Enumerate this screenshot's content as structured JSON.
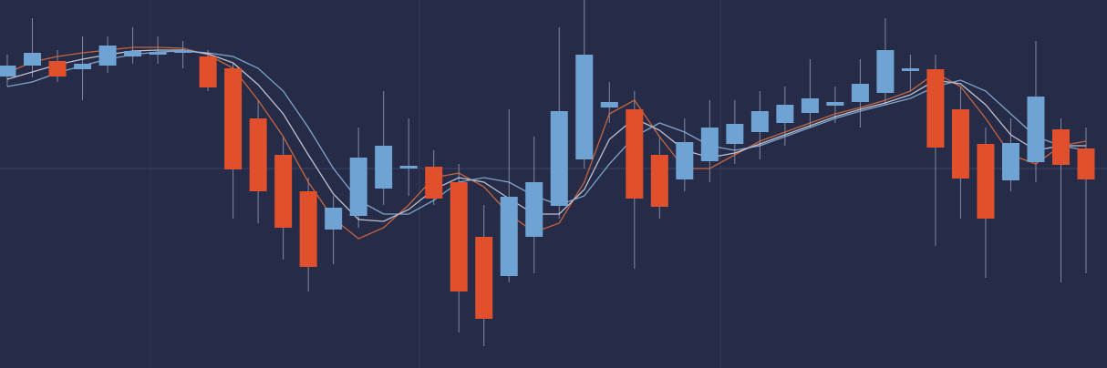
{
  "chart_data": {
    "type": "candlestick",
    "categories": [
      null,
      null,
      null,
      null,
      null,
      null,
      null,
      null,
      null,
      null,
      null,
      null,
      null,
      null,
      null,
      null,
      null,
      null,
      null,
      null,
      null,
      null,
      null,
      null,
      null,
      null,
      null,
      null,
      null,
      null,
      null,
      null,
      null,
      null,
      null,
      null,
      null,
      null,
      null,
      null,
      null,
      null,
      null,
      null
    ],
    "open": [
      320,
      332,
      337,
      328,
      332,
      342,
      344,
      346,
      342,
      329,
      274,
      234,
      194,
      152,
      167,
      197,
      219,
      221,
      204,
      144,
      101,
      144,
      178,
      229,
      286,
      284,
      234,
      207,
      227,
      246,
      259,
      269,
      280,
      288,
      292,
      302,
      326,
      328,
      284,
      246,
      206,
      226,
      262,
      241
    ],
    "high": [
      344,
      384,
      349,
      364,
      364,
      374,
      364,
      359,
      349,
      334,
      294,
      254,
      209,
      189,
      264,
      304,
      274,
      239,
      224,
      179,
      284,
      254,
      374,
      404,
      314,
      304,
      254,
      274,
      294,
      294,
      304,
      309,
      339,
      309,
      339,
      384,
      344,
      344,
      309,
      264,
      274,
      359,
      274,
      264
    ],
    "low": [
      309,
      319,
      314,
      294,
      324,
      334,
      334,
      329,
      304,
      164,
      159,
      119,
      84,
      114,
      154,
      179,
      189,
      179,
      39,
      24,
      94,
      104,
      164,
      219,
      269,
      109,
      164,
      194,
      204,
      224,
      229,
      244,
      264,
      269,
      264,
      289,
      304,
      134,
      164,
      99,
      194,
      204,
      94,
      104
    ],
    "close": [
      332,
      346,
      320,
      334,
      354,
      348,
      347,
      349,
      308,
      218,
      194,
      154,
      111,
      176,
      231,
      244,
      222,
      186,
      84,
      54,
      188,
      204,
      282,
      344,
      292,
      186,
      177,
      248,
      264,
      268,
      282,
      289,
      296,
      292,
      312,
      349,
      329,
      242,
      208,
      164,
      247,
      298,
      223,
      207
    ],
    "up_color": "#6fa3d3",
    "down_color": "#e0502c",
    "lines": [
      {
        "color": "#e0703e",
        "values": [
          324,
          336,
          342,
          346,
          349,
          352,
          352,
          351,
          344,
          329,
          294,
          254,
          204,
          164,
          142,
          154,
          179,
          209,
          214,
          199,
          169,
          149,
          159,
          204,
          279,
          294,
          254,
          219,
          219,
          234,
          249,
          259,
          269,
          279,
          286,
          294,
          304,
          324,
          309,
          274,
          234,
          224,
          244,
          249
        ]
      },
      {
        "color": "#d9dde8",
        "values": [
          317,
          325,
          333,
          339,
          344,
          348,
          349,
          349,
          345,
          335,
          311,
          279,
          234,
          191,
          163,
          161,
          174,
          196,
          209,
          204,
          186,
          169,
          169,
          196,
          251,
          274,
          261,
          239,
          231,
          236,
          246,
          256,
          266,
          276,
          284,
          291,
          300,
          316,
          312,
          289,
          256,
          239,
          244,
          244
        ]
      },
      {
        "color": "#8fb8e0",
        "values": [
          309,
          314,
          324,
          332,
          339,
          344,
          347,
          348,
          346,
          342,
          329,
          304,
          264,
          219,
          184,
          169,
          169,
          184,
          204,
          209,
          204,
          189,
          179,
          189,
          224,
          254,
          269,
          259,
          244,
          239,
          244,
          254,
          264,
          274,
          282,
          289,
          296,
          309,
          316,
          304,
          279,
          254,
          244,
          239
        ]
      }
    ],
    "ylim": [
      0,
      404
    ]
  }
}
